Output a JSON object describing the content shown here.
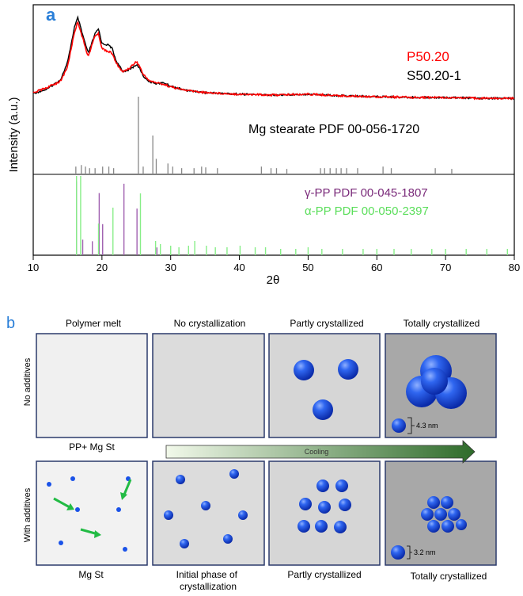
{
  "panel_a": {
    "label": "a",
    "ylabel": "Intensity (a.u.)",
    "xlabel": "2θ",
    "xticks": [
      "10",
      "20",
      "30",
      "40",
      "50",
      "60",
      "70",
      "80"
    ],
    "legend": [
      {
        "name": "P50.20",
        "color": "#ff0000"
      },
      {
        "name": "S50.20-1",
        "color": "#000000"
      }
    ],
    "ref_labels": {
      "mg": "Mg stearate PDF 00-056-1720",
      "gamma": "γ-PP PDF 00-045-1807",
      "alpha": "α-PP PDF 00-050-2397"
    },
    "colors": {
      "mg": "#888888",
      "gamma": "#a060b0",
      "alpha": "#88ee88",
      "red": "#ff0000",
      "black": "#000000"
    }
  },
  "chart_data": {
    "type": "line",
    "xlabel": "2θ",
    "ylabel": "Intensity (a.u.)",
    "xlim": [
      10,
      80
    ],
    "series": [
      {
        "name": "P50.20",
        "x": [
          10,
          12,
          14,
          15,
          16,
          16.5,
          17,
          18,
          19,
          19.5,
          20,
          21,
          21.5,
          22,
          23,
          24,
          25,
          25.5,
          26,
          27,
          28,
          29,
          30,
          32,
          35,
          40,
          45,
          50,
          55,
          60,
          65,
          70,
          75,
          80
        ],
        "y": [
          0.08,
          0.14,
          0.22,
          0.4,
          0.82,
          0.95,
          0.8,
          0.52,
          0.78,
          0.8,
          0.62,
          0.58,
          0.56,
          0.45,
          0.33,
          0.38,
          0.46,
          0.4,
          0.3,
          0.22,
          0.2,
          0.18,
          0.15,
          0.11,
          0.08,
          0.06,
          0.05,
          0.06,
          0.04,
          0.03,
          0.02,
          0.02,
          0.01,
          0.01
        ]
      },
      {
        "name": "S50.20-1",
        "x": [
          10,
          12,
          14,
          15,
          16,
          16.5,
          17,
          18,
          19,
          19.5,
          20,
          21,
          21.5,
          22,
          23,
          24,
          25,
          25.5,
          26,
          27,
          28,
          29,
          30,
          32,
          35,
          40,
          45,
          50,
          55,
          60,
          65,
          70,
          75,
          80
        ],
        "y": [
          0.07,
          0.12,
          0.24,
          0.45,
          0.88,
          1.0,
          0.84,
          0.56,
          0.8,
          0.86,
          0.68,
          0.66,
          0.62,
          0.48,
          0.34,
          0.36,
          0.42,
          0.38,
          0.28,
          0.21,
          0.19,
          0.2,
          0.16,
          0.11,
          0.08,
          0.06,
          0.05,
          0.06,
          0.04,
          0.03,
          0.02,
          0.02,
          0.01,
          0.01
        ]
      }
    ],
    "mg_stearate_peaks": [
      [
        16.2,
        0.1
      ],
      [
        17,
        0.12
      ],
      [
        17.6,
        0.1
      ],
      [
        18.2,
        0.08
      ],
      [
        19,
        0.08
      ],
      [
        20.1,
        0.1
      ],
      [
        21,
        0.1
      ],
      [
        21.7,
        0.08
      ],
      [
        25.3,
        1.0
      ],
      [
        26,
        0.1
      ],
      [
        27.4,
        0.5
      ],
      [
        27.9,
        0.2
      ],
      [
        29.6,
        0.14
      ],
      [
        30.3,
        0.1
      ],
      [
        31.6,
        0.08
      ],
      [
        33.4,
        0.08
      ],
      [
        34.5,
        0.1
      ],
      [
        35.1,
        0.09
      ],
      [
        36.8,
        0.08
      ],
      [
        43.2,
        0.1
      ],
      [
        44.6,
        0.08
      ],
      [
        45.4,
        0.08
      ],
      [
        46.9,
        0.07
      ],
      [
        51.8,
        0.08
      ],
      [
        52.4,
        0.08
      ],
      [
        53.2,
        0.08
      ],
      [
        54.1,
        0.08
      ],
      [
        54.8,
        0.08
      ],
      [
        55.6,
        0.08
      ],
      [
        57.2,
        0.08
      ],
      [
        60.9,
        0.1
      ],
      [
        62.1,
        0.08
      ],
      [
        68.5,
        0.08
      ],
      [
        70.9,
        0.07
      ]
    ],
    "gamma_pp_peaks": [
      [
        16.3,
        0.95
      ],
      [
        17.2,
        0.2
      ],
      [
        18.6,
        0.18
      ],
      [
        19.6,
        0.8
      ],
      [
        20.1,
        0.4
      ],
      [
        23.2,
        0.92
      ],
      [
        25.1,
        0.6
      ],
      [
        28,
        0.1
      ]
    ],
    "alpha_pp_peaks": [
      [
        16.3,
        1.0
      ],
      [
        16.9,
        1.0
      ],
      [
        21.6,
        0.6
      ],
      [
        25.6,
        0.78
      ],
      [
        19.5,
        0.4
      ],
      [
        27.8,
        0.18
      ],
      [
        28.5,
        0.14
      ],
      [
        30,
        0.12
      ],
      [
        31.2,
        0.1
      ],
      [
        32.6,
        0.12
      ],
      [
        33.5,
        0.18
      ],
      [
        35.2,
        0.12
      ],
      [
        36.5,
        0.1
      ],
      [
        38.2,
        0.1
      ],
      [
        40.1,
        0.12
      ],
      [
        42.3,
        0.1
      ],
      [
        43.8,
        0.1
      ],
      [
        46,
        0.08
      ],
      [
        48.2,
        0.08
      ],
      [
        50,
        0.1
      ],
      [
        52,
        0.08
      ],
      [
        55,
        0.08
      ],
      [
        58,
        0.08
      ],
      [
        60,
        0.08
      ],
      [
        62.5,
        0.08
      ],
      [
        65,
        0.08
      ],
      [
        68,
        0.08
      ],
      [
        70,
        0.08
      ],
      [
        73,
        0.08
      ],
      [
        76,
        0.08
      ],
      [
        79,
        0.08
      ]
    ]
  },
  "panel_b": {
    "label": "b",
    "top_headers": [
      "Polymer melt",
      "No crystallization",
      "Partly crystallized",
      "Totally crystallized"
    ],
    "row_labels": [
      "No additives",
      "With additives"
    ],
    "mid_left": "PP+ Mg St",
    "arrow_label": "Cooling",
    "bottom_captions": [
      "Mg St",
      "Initial phase of\ncrystallization",
      "Partly crystallized",
      "Totally crystallized"
    ],
    "size_top": "4.3 nm",
    "size_bottom": "3.2 nm",
    "colors": {
      "sphere": "#1a52e8",
      "arrow": "#22bb44",
      "panel_border": "#2b3a6b"
    }
  }
}
